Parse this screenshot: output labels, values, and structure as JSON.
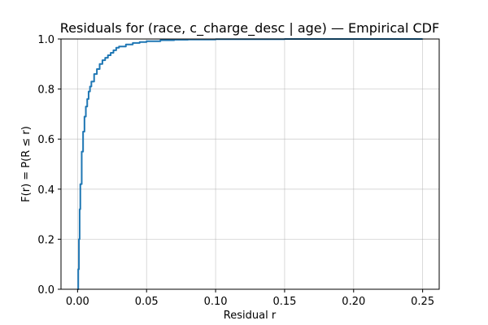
{
  "chart_data": {
    "type": "line",
    "title": "Residuals for (race, c_charge_desc | age) — Empirical CDF",
    "xlabel": "Residual r",
    "ylabel": "F(r) = P(R ≤ r)",
    "xlim": [
      -0.012,
      0.262
    ],
    "ylim": [
      0.0,
      1.0
    ],
    "grid": true,
    "x_ticks": [
      0.0,
      0.05,
      0.1,
      0.15,
      0.2,
      0.25
    ],
    "x_tick_labels": [
      "0.00",
      "0.05",
      "0.10",
      "0.15",
      "0.20",
      "0.25"
    ],
    "y_ticks": [
      0.0,
      0.2,
      0.4,
      0.6,
      0.8,
      1.0
    ],
    "y_tick_labels": [
      "0.0",
      "0.2",
      "0.4",
      "0.6",
      "0.8",
      "1.0"
    ],
    "line_color": "#1f77b4",
    "series": [
      {
        "x": [
          0.0,
          0.0005,
          0.001,
          0.0015,
          0.002,
          0.003,
          0.004,
          0.005,
          0.006,
          0.007,
          0.008,
          0.009,
          0.01,
          0.012,
          0.014,
          0.016,
          0.018,
          0.02,
          0.022,
          0.024,
          0.026,
          0.028,
          0.03,
          0.035,
          0.04,
          0.045,
          0.05,
          0.06,
          0.07,
          0.08,
          0.1,
          0.15,
          0.2,
          0.25
        ],
        "y": [
          0.0,
          0.08,
          0.2,
          0.32,
          0.42,
          0.55,
          0.63,
          0.69,
          0.73,
          0.76,
          0.79,
          0.81,
          0.83,
          0.86,
          0.88,
          0.9,
          0.915,
          0.925,
          0.935,
          0.945,
          0.955,
          0.965,
          0.97,
          0.978,
          0.984,
          0.988,
          0.991,
          0.995,
          0.997,
          0.998,
          0.999,
          1.0,
          1.0,
          1.0
        ]
      }
    ]
  }
}
